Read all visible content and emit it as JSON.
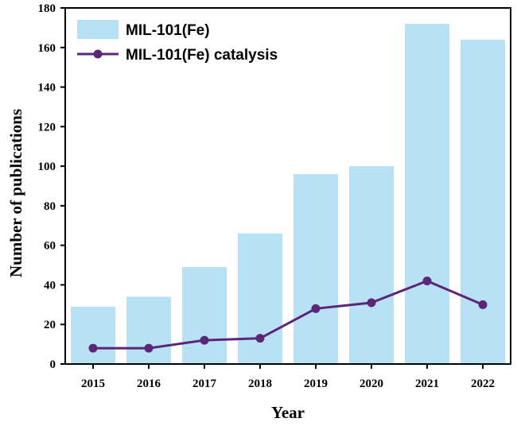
{
  "chart_data": {
    "type": "bar",
    "title": "",
    "xlabel": "Year",
    "ylabel": "Number of publications",
    "categories": [
      "2015",
      "2016",
      "2017",
      "2018",
      "2019",
      "2020",
      "2021",
      "2022"
    ],
    "ylim": [
      0,
      180
    ],
    "yticks": [
      0,
      20,
      40,
      60,
      80,
      100,
      120,
      140,
      160,
      180
    ],
    "grid": false,
    "legend_position": "top-left",
    "series": [
      {
        "name": "MIL-101(Fe)",
        "type": "bar",
        "color": "#b9e1f5",
        "values": [
          29,
          34,
          49,
          66,
          96,
          100,
          172,
          164
        ]
      },
      {
        "name": "MIL-101(Fe) catalysis",
        "type": "line",
        "color": "#5b2676",
        "marker": "circle",
        "values": [
          8,
          8,
          12,
          13,
          28,
          31,
          42,
          30
        ]
      }
    ]
  }
}
